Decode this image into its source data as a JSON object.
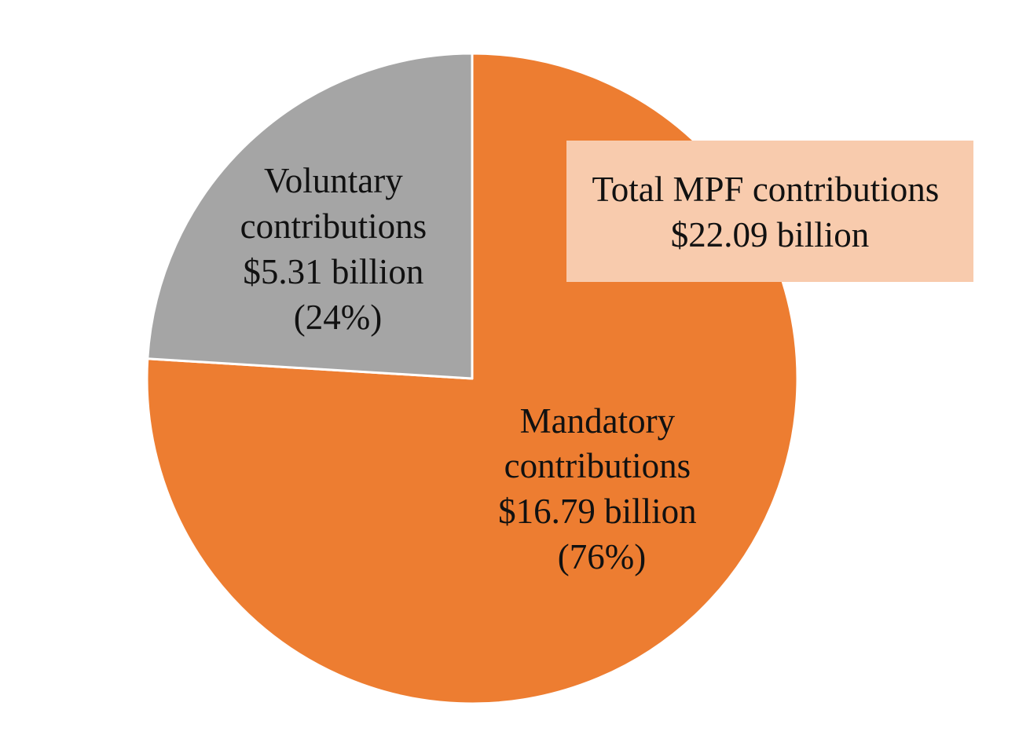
{
  "chart_data": {
    "type": "pie",
    "start_angle_deg": -90,
    "direction": "clockwise",
    "slice_border_color": "#ffffff",
    "slices": [
      {
        "key": "mandatory",
        "value": 16.79,
        "color": "#ED7D31",
        "label_lines": [
          "Mandatory",
          "contributions",
          "$16.79 billion",
          "(76%)"
        ]
      },
      {
        "key": "voluntary",
        "value": 5.31,
        "color": "#A5A5A5",
        "label_lines": [
          "Voluntary",
          "contributions",
          "$5.31 billion",
          "(24%)"
        ]
      }
    ],
    "total_box": {
      "lines": [
        "Total MPF contributions",
        "$22.09 billion"
      ],
      "fill": "#F8CBAD"
    }
  }
}
